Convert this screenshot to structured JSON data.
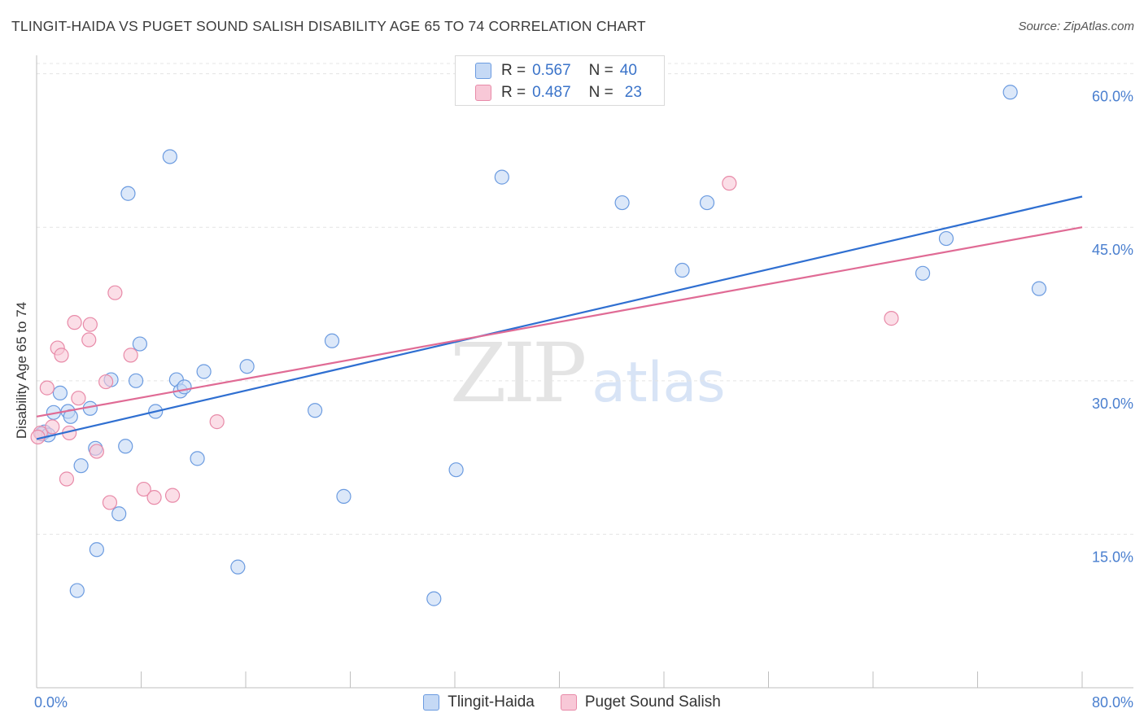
{
  "title": "TLINGIT-HAIDA VS PUGET SOUND SALISH DISABILITY AGE 65 TO 74 CORRELATION CHART",
  "source": "Source: ZipAtlas.com",
  "watermark": {
    "zip": "ZIP",
    "atlas": "atlas"
  },
  "legend_top": [
    {
      "r_label": "R =",
      "r_value": "0.567",
      "n_label": "N =",
      "n_value": "40"
    },
    {
      "r_label": "R =",
      "r_value": "0.487",
      "n_label": "N =",
      "n_value": "23"
    }
  ],
  "chart_data": {
    "type": "scatter",
    "title": "TLINGIT-HAIDA VS PUGET SOUND SALISH DISABILITY AGE 65 TO 74 CORRELATION CHART",
    "xlabel": "",
    "ylabel": "Disability Age 65 to 74",
    "xlim": [
      0,
      80
    ],
    "ylim": [
      0,
      61.8
    ],
    "x_tick_labels": [
      "0.0%",
      "80.0%"
    ],
    "y_ticks": [
      15,
      30,
      45,
      60
    ],
    "y_tick_labels": [
      "15.0%",
      "30.0%",
      "45.0%",
      "60.0%"
    ],
    "grid": true,
    "series": [
      {
        "name": "Tlingit-Haida",
        "color": "#6b9be0",
        "fill": "#c5d9f5",
        "r": "0.567",
        "n": "40",
        "trend": [
          [
            0,
            24.3
          ],
          [
            80,
            48.0
          ]
        ],
        "points": [
          [
            0.6,
            25.0
          ],
          [
            1.3,
            26.9
          ],
          [
            1.8,
            28.8
          ],
          [
            2.4,
            27.0
          ],
          [
            2.6,
            26.5
          ],
          [
            3.1,
            9.5
          ],
          [
            3.4,
            21.7
          ],
          [
            4.1,
            27.3
          ],
          [
            4.5,
            23.4
          ],
          [
            4.6,
            13.5
          ],
          [
            5.7,
            30.1
          ],
          [
            6.3,
            17.0
          ],
          [
            6.8,
            23.6
          ],
          [
            7.0,
            48.3
          ],
          [
            7.6,
            30.0
          ],
          [
            7.9,
            33.6
          ],
          [
            9.1,
            27.0
          ],
          [
            10.2,
            51.9
          ],
          [
            10.7,
            30.1
          ],
          [
            11.0,
            29.0
          ],
          [
            11.3,
            29.4
          ],
          [
            12.3,
            22.4
          ],
          [
            12.8,
            30.9
          ],
          [
            15.4,
            11.8
          ],
          [
            16.1,
            31.4
          ],
          [
            21.3,
            27.1
          ],
          [
            22.6,
            33.9
          ],
          [
            23.5,
            18.7
          ],
          [
            30.4,
            8.7
          ],
          [
            32.1,
            21.3
          ],
          [
            35.6,
            49.9
          ],
          [
            44.8,
            47.4
          ],
          [
            49.4,
            40.8
          ],
          [
            51.3,
            47.4
          ],
          [
            67.8,
            40.5
          ],
          [
            69.6,
            43.9
          ],
          [
            74.5,
            58.2
          ],
          [
            76.7,
            39.0
          ],
          [
            0.4,
            24.8
          ],
          [
            0.9,
            24.7
          ]
        ]
      },
      {
        "name": "Puget Sound Salish",
        "color": "#e88aa8",
        "fill": "#f8c8d7",
        "r": "0.487",
        "n": "23",
        "trend": [
          [
            0,
            26.5
          ],
          [
            80,
            45.0
          ]
        ],
        "points": [
          [
            0.3,
            24.9
          ],
          [
            0.8,
            29.3
          ],
          [
            1.2,
            25.5
          ],
          [
            1.6,
            33.2
          ],
          [
            1.9,
            32.5
          ],
          [
            2.3,
            20.4
          ],
          [
            2.5,
            24.9
          ],
          [
            2.9,
            35.7
          ],
          [
            3.2,
            28.3
          ],
          [
            4.0,
            34.0
          ],
          [
            4.1,
            35.5
          ],
          [
            4.6,
            23.1
          ],
          [
            5.3,
            29.9
          ],
          [
            5.6,
            18.1
          ],
          [
            6.0,
            38.6
          ],
          [
            7.2,
            32.5
          ],
          [
            8.2,
            19.4
          ],
          [
            9.0,
            18.6
          ],
          [
            10.4,
            18.8
          ],
          [
            13.8,
            26.0
          ],
          [
            53.0,
            49.3
          ],
          [
            65.4,
            36.1
          ],
          [
            0.1,
            24.5
          ]
        ]
      }
    ]
  }
}
